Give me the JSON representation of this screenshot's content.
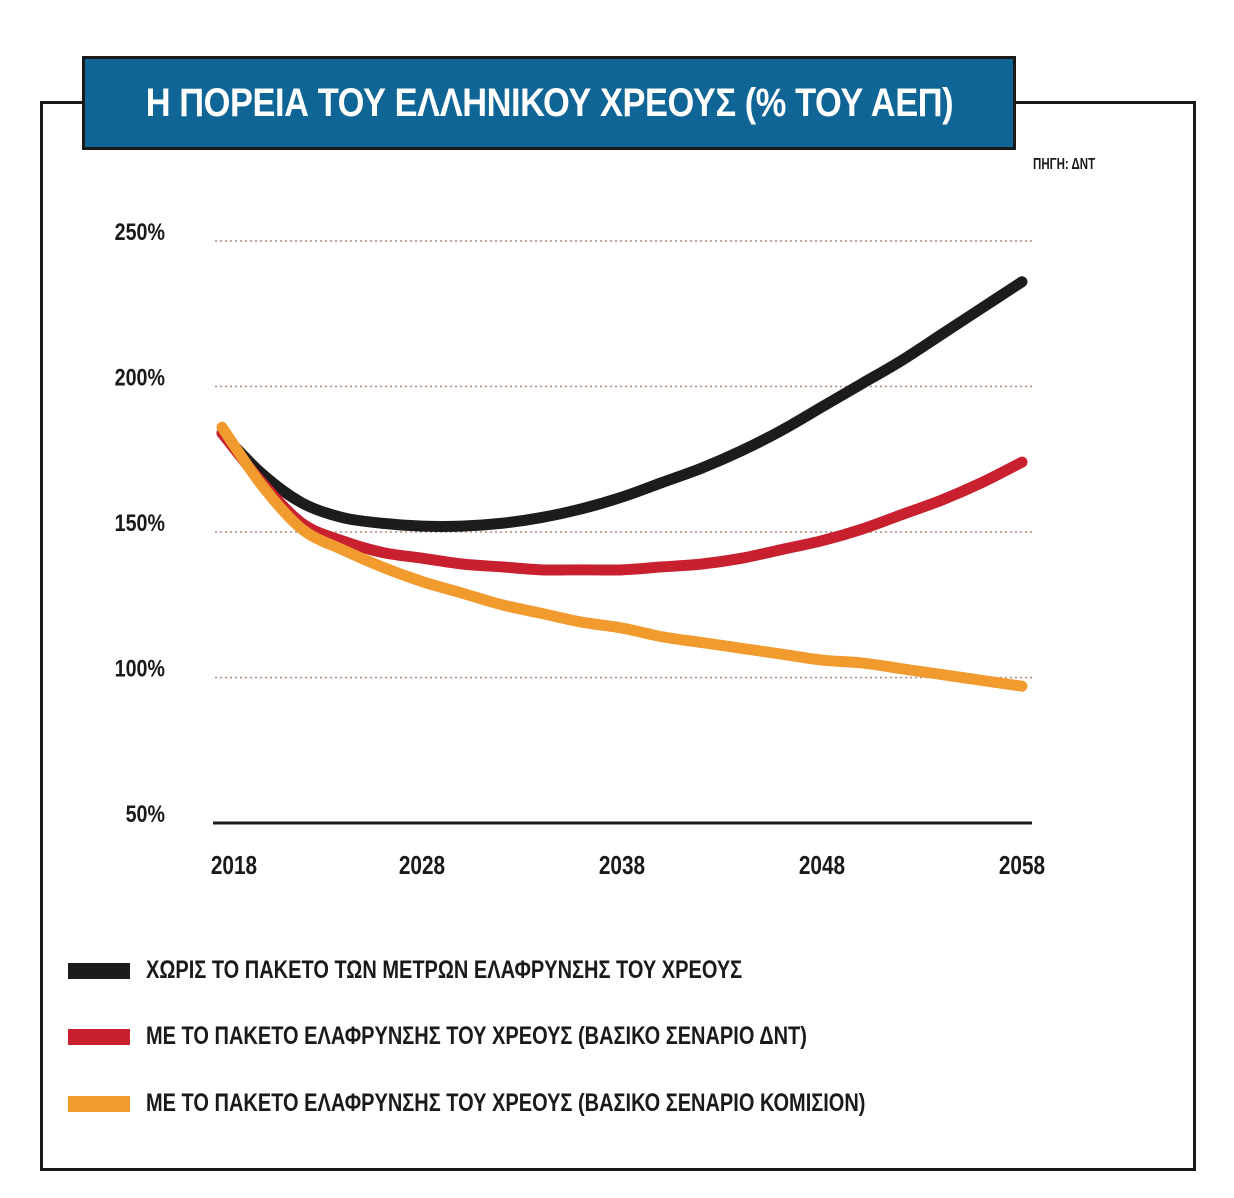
{
  "title": "Η ΠΟΡΕΙΑ ΤΟΥ ΕΛΛΗΝΙΚΟΥ ΧΡΕΟΥΣ (% ΤΟΥ ΑΕΠ)",
  "source": "ΠΗΓΗ: ΔΝΤ",
  "colors": {
    "title_bg": "#0e6596",
    "black_series": "#1c1c1c",
    "red_series": "#c8202f",
    "orange_series": "#f19a2e",
    "grid": "#b08a7a"
  },
  "chart_data": {
    "type": "line",
    "title": "Η ΠΟΡΕΙΑ ΤΟΥ ΕΛΛΗΝΙΚΟΥ ΧΡΕΟΥΣ (% ΤΟΥ ΑΕΠ)",
    "xlabel": "",
    "ylabel": "",
    "xlim": [
      2018,
      2060
    ],
    "ylim": [
      50,
      250
    ],
    "xticks": [
      2018,
      2028,
      2038,
      2048,
      2058
    ],
    "xtick_labels": [
      "2018",
      "2028",
      "2038",
      "2048",
      "2058"
    ],
    "yticks": [
      50,
      100,
      150,
      200,
      250
    ],
    "ytick_labels": [
      "50%",
      "100%",
      "150%",
      "200%",
      "250%"
    ],
    "grid": "horizontal dotted",
    "legend_position": "bottom",
    "series": [
      {
        "name": "ΧΩΡΙΣ ΤΟ ΠΑΚΕΤΟ ΤΩΝ ΜΕΤΡΩΝ ΕΛΑΦΡΥΝΣΗΣ ΤΟΥ ΧΡΕΟΥΣ",
        "color": "#1c1c1c",
        "x": [
          2018,
          2020,
          2022,
          2024,
          2026,
          2028,
          2030,
          2032,
          2034,
          2036,
          2038,
          2040,
          2042,
          2044,
          2046,
          2048,
          2050,
          2052,
          2054,
          2056,
          2058
        ],
        "y": [
          184,
          170,
          160,
          155,
          153,
          152,
          152,
          153,
          155,
          158,
          162,
          167,
          172,
          178,
          185,
          193,
          201,
          209,
          218,
          227,
          236
        ]
      },
      {
        "name": "ΜΕ ΤΟ ΠΑΚΕΤΟ ΕΛΑΦΡΥΝΣΗΣ ΤΟΥ ΧΡΕΟΥΣ (ΒΑΣΙΚΟ ΣΕΝΑΡΙΟ ΔΝΤ)",
        "color": "#c8202f",
        "x": [
          2018,
          2020,
          2022,
          2024,
          2026,
          2028,
          2030,
          2032,
          2034,
          2036,
          2038,
          2040,
          2042,
          2044,
          2046,
          2048,
          2050,
          2052,
          2054,
          2056,
          2058
        ],
        "y": [
          184,
          167,
          153,
          147,
          143,
          141,
          139,
          138,
          137,
          137,
          137,
          138,
          139,
          141,
          144,
          147,
          151,
          156,
          161,
          167,
          174
        ]
      },
      {
        "name": "ΜΕ ΤΟ ΠΑΚΕΤΟ ΕΛΑΦΡΥΝΣΗΣ ΤΟΥ ΧΡΕΟΥΣ (ΒΑΣΙΚΟ ΣΕΝΑΡΙΟ ΚΟΜΙΣΙΟΝ)",
        "color": "#f19a2e",
        "x": [
          2018,
          2020,
          2022,
          2024,
          2026,
          2028,
          2030,
          2032,
          2034,
          2036,
          2038,
          2040,
          2042,
          2044,
          2046,
          2048,
          2050,
          2052,
          2054,
          2056,
          2058
        ],
        "y": [
          186,
          166,
          151,
          144,
          138,
          133,
          129,
          125,
          122,
          119,
          117,
          114,
          112,
          110,
          108,
          106,
          105,
          103,
          101,
          99,
          97
        ]
      }
    ]
  }
}
